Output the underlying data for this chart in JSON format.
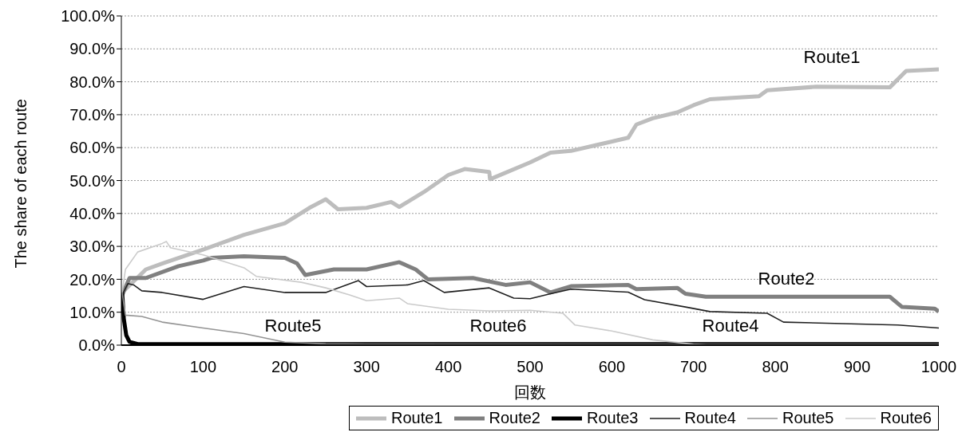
{
  "chart_data": {
    "type": "line",
    "xlabel": "回数",
    "ylabel": "The share of each route",
    "xlim": [
      0,
      1000
    ],
    "xticks": [
      0,
      100,
      200,
      300,
      400,
      500,
      600,
      700,
      800,
      900,
      1000
    ],
    "ylim": [
      0,
      100
    ],
    "yticks": [
      {
        "value": 0,
        "label": "0.0%"
      },
      {
        "value": 10,
        "label": "10.0%"
      },
      {
        "value": 20,
        "label": "20.0%"
      },
      {
        "value": 30,
        "label": "30.0%"
      },
      {
        "value": 40,
        "label": "40.0%"
      },
      {
        "value": 50,
        "label": "50.0%"
      },
      {
        "value": 60,
        "label": "60.0%"
      },
      {
        "value": 70,
        "label": "70.0%"
      },
      {
        "value": 80,
        "label": "80.0%"
      },
      {
        "value": 90,
        "label": "90.0%"
      },
      {
        "value": 100,
        "label": "100.0%"
      }
    ],
    "grid": "y",
    "legend": "bottom",
    "marker": "none",
    "line_style": "solid",
    "series": [
      {
        "name": "Route1",
        "color": "#bdbdbd",
        "x": [
          1,
          30,
          50,
          100,
          150,
          200,
          230,
          250,
          265,
          300,
          330,
          340,
          370,
          400,
          420,
          450,
          451,
          500,
          525,
          550,
          580,
          620,
          630,
          650,
          680,
          700,
          720,
          780,
          790,
          850,
          940,
          960,
          1000
        ],
        "values": [
          16,
          23,
          24.8,
          29,
          33.5,
          37,
          41.7,
          44.3,
          41.3,
          41.7,
          43.5,
          42,
          46.5,
          51.7,
          53.5,
          52.6,
          50.4,
          55.5,
          58.5,
          59,
          60.7,
          63,
          67,
          68.9,
          70.7,
          72.9,
          74.7,
          75.6,
          77.4,
          78.5,
          78.3,
          83.3,
          83.8
        ]
      },
      {
        "name": "Route2",
        "color": "#808080",
        "x": [
          1,
          10,
          30,
          70,
          100,
          110,
          150,
          200,
          215,
          225,
          260,
          300,
          340,
          360,
          375,
          430,
          470,
          500,
          525,
          550,
          620,
          630,
          680,
          690,
          715,
          940,
          955,
          995,
          1000
        ],
        "values": [
          15.2,
          20.4,
          20.4,
          24,
          25.7,
          26.5,
          27,
          26.5,
          24.8,
          21.3,
          23,
          23,
          25.2,
          23,
          20,
          20.4,
          18.3,
          19.1,
          16,
          17.9,
          18.3,
          17,
          17.4,
          15.6,
          14.7,
          14.7,
          11.6,
          11.1,
          10.2
        ]
      },
      {
        "name": "Route3",
        "color": "#000000",
        "x": [
          1,
          3,
          6,
          10,
          20,
          1000
        ],
        "values": [
          16,
          8,
          3,
          1,
          0.3,
          0.3
        ]
      },
      {
        "name": "Route4",
        "color": "#202020",
        "x": [
          1,
          8,
          15,
          25,
          50,
          100,
          150,
          200,
          250,
          290,
          300,
          350,
          370,
          395,
          450,
          480,
          500,
          525,
          550,
          620,
          640,
          690,
          720,
          790,
          810,
          950,
          1000
        ],
        "values": [
          15.2,
          18.7,
          18.3,
          16.5,
          16,
          13.9,
          17.8,
          16,
          16,
          19.6,
          17.8,
          18.3,
          19.6,
          16,
          17.4,
          14.3,
          14.1,
          15.6,
          17,
          16.1,
          13.8,
          11.6,
          10.2,
          9.7,
          7,
          6.1,
          5.2
        ]
      },
      {
        "name": "Route5",
        "color": "#949494",
        "x": [
          1,
          5,
          25,
          50,
          100,
          150,
          200,
          250,
          300,
          1000
        ],
        "values": [
          16,
          9.1,
          8.7,
          7,
          5.2,
          3.5,
          0.9,
          0.4,
          0.3,
          0.2
        ]
      },
      {
        "name": "Route6",
        "color": "#cbcbcb",
        "x": [
          1,
          5,
          20,
          50,
          55,
          60,
          100,
          150,
          165,
          220,
          250,
          280,
          300,
          340,
          350,
          400,
          450,
          500,
          540,
          555,
          600,
          650,
          700,
          720,
          1000
        ],
        "values": [
          16,
          23,
          28.3,
          30.9,
          31.5,
          29.6,
          27.4,
          23.5,
          20.9,
          19.1,
          17.4,
          15.2,
          13.5,
          14.3,
          12.6,
          10.9,
          10.4,
          10.6,
          9.7,
          6.1,
          4.3,
          1.6,
          0.3,
          0,
          0
        ]
      }
    ],
    "annotations": [
      "Route1",
      "Route2",
      "Route4",
      "Route5",
      "Route6"
    ]
  }
}
